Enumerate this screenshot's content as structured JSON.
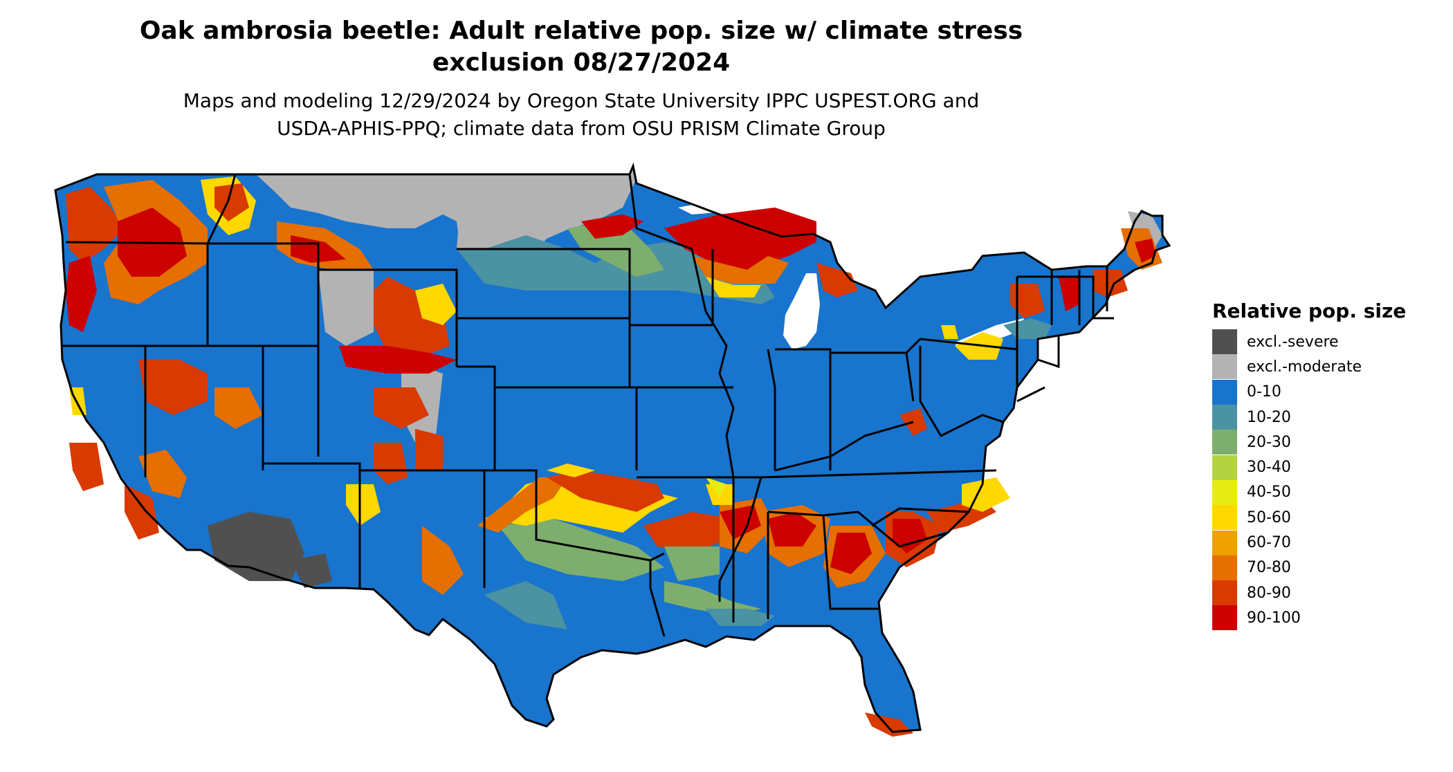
{
  "title_line1": "Oak ambrosia beetle: Adult relative pop. size w/ climate stress",
  "title_line2": "exclusion 08/27/2024",
  "subtitle_line1": "Maps and modeling 12/29/2024 by Oregon State University IPPC USPEST.ORG and",
  "subtitle_line2": "USDA-APHIS-PPQ; climate data from OSU PRISM Climate Group",
  "legend": {
    "title": "Relative pop. size",
    "items": [
      {
        "label": "excl.-severe",
        "color": "#505050"
      },
      {
        "label": "excl.-moderate",
        "color": "#b3b3b3"
      },
      {
        "label": "0-10",
        "color": "#1874cd"
      },
      {
        "label": "10-20",
        "color": "#4b92a3"
      },
      {
        "label": "20-30",
        "color": "#7eae6e"
      },
      {
        "label": "30-40",
        "color": "#b5d240"
      },
      {
        "label": "40-50",
        "color": "#e6ec12"
      },
      {
        "label": "50-60",
        "color": "#ffd800"
      },
      {
        "label": "60-70",
        "color": "#eea000"
      },
      {
        "label": "70-80",
        "color": "#e56f00"
      },
      {
        "label": "80-90",
        "color": "#d83a00"
      },
      {
        "label": "90-100",
        "color": "#cd0000"
      }
    ]
  }
}
